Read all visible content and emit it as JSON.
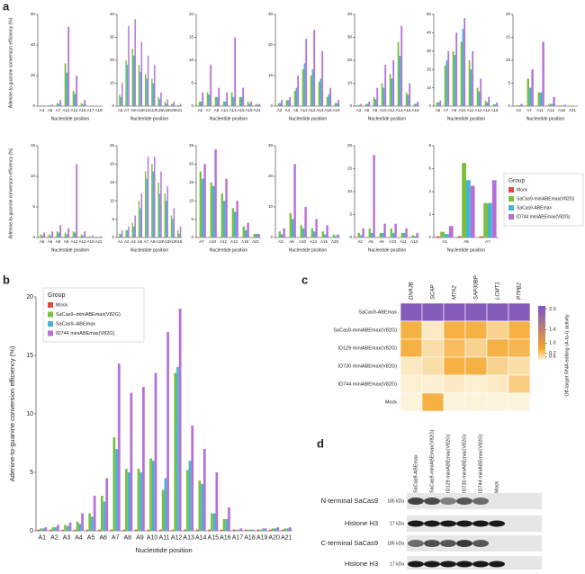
{
  "panels": [
    "a",
    "b",
    "c",
    "d"
  ],
  "chart_data": [
    {
      "type": "bar-grid",
      "ylabel": "Adenine-to-guanine conversion efficiency (%)",
      "xlabel": "Nucleotide position",
      "legend_title": "Group",
      "series": [
        {
          "name": "Mock",
          "color": "#e8463f"
        },
        {
          "name": "SaCas9-miniABEmax(V82G)",
          "color": "#7cbf3f"
        },
        {
          "name": "SaCas9-ABEmax",
          "color": "#45b5d3"
        },
        {
          "name": "ID744 miniABEmax(V82G)",
          "color": "#b66fd6"
        }
      ],
      "subplots": [
        {
          "categories": [
            "A4",
            "A5",
            "A7",
            "A12",
            "A14",
            "A15",
            "A17",
            "A19"
          ],
          "ylim": [
            0,
            60
          ],
          "yticks": [
            0,
            20,
            40,
            60
          ],
          "values": [
            [
              0.1,
              0.1,
              0.1,
              0.1,
              0.1,
              0.1,
              0.1,
              0.1
            ],
            [
              0.5,
              0.5,
              2,
              28,
              10,
              2,
              0.3,
              0.2
            ],
            [
              0.3,
              0.5,
              1.5,
              22,
              8,
              1,
              0.2,
              0.1
            ],
            [
              0.5,
              1,
              4,
              52,
              20,
              4,
              0.5,
              0.3
            ]
          ]
        },
        {
          "categories": [
            "A6",
            "A7",
            "A8",
            "A10",
            "A11",
            "A13",
            "A15",
            "A16",
            "A20",
            "A21"
          ],
          "ylim": [
            0,
            40
          ],
          "yticks": [
            0,
            10,
            20,
            30,
            40
          ],
          "values": [
            [
              0.1,
              0.1,
              0.1,
              0.1,
              0.1,
              0.1,
              0.1,
              0.1,
              0.1,
              0.1
            ],
            [
              5,
              20,
              25,
              18,
              14,
              12,
              4,
              2,
              1,
              0.5
            ],
            [
              4,
              18,
              22,
              15,
              12,
              10,
              3,
              1,
              1,
              0.3
            ],
            [
              10,
              35,
              38,
              28,
              22,
              18,
              6,
              3,
              2,
              1
            ]
          ]
        },
        {
          "categories": [
            "A5",
            "A7",
            "A9",
            "A11",
            "A13",
            "A15",
            "A18",
            "A21"
          ],
          "ylim": [
            0,
            20
          ],
          "yticks": [
            0,
            5,
            10,
            15,
            20
          ],
          "values": [
            [
              0.1,
              0.1,
              0.1,
              0.1,
              0.1,
              0.1,
              0.1,
              0.1
            ],
            [
              1,
              3,
              2,
              1,
              3,
              2,
              1,
              0.5
            ],
            [
              1,
              2.5,
              2,
              1,
              2,
              2,
              0.5,
              0.3
            ],
            [
              3,
              9,
              4,
              3,
              15,
              4,
              1,
              0.5
            ]
          ]
        },
        {
          "categories": [
            "A3",
            "A4",
            "A8",
            "A11",
            "A12",
            "A13",
            "A18",
            "A19"
          ],
          "ylim": [
            0,
            30
          ],
          "yticks": [
            0,
            10,
            20,
            30
          ],
          "values": [
            [
              0.1,
              0.1,
              0.1,
              0.1,
              0.1,
              0.1,
              0.1,
              0.1
            ],
            [
              1,
              2,
              5,
              12,
              10,
              8,
              3,
              1
            ],
            [
              1,
              2,
              6,
              14,
              12,
              9,
              4,
              1
            ],
            [
              2,
              3,
              10,
              22,
              25,
              18,
              6,
              2
            ]
          ]
        },
        {
          "categories": [
            "A3",
            "A5",
            "A8",
            "A10",
            "A12",
            "A13",
            "A15",
            "A16"
          ],
          "ylim": [
            0,
            40
          ],
          "yticks": [
            0,
            10,
            20,
            30,
            40
          ],
          "values": [
            [
              0.1,
              0.1,
              0.1,
              0.1,
              0.1,
              0.1,
              0.1,
              0.1
            ],
            [
              0.5,
              1,
              4,
              10,
              14,
              28,
              6,
              1
            ],
            [
              0.5,
              1,
              3,
              8,
              12,
              22,
              5,
              1
            ],
            [
              1,
              2,
              8,
              18,
              20,
              35,
              10,
              2
            ]
          ]
        },
        {
          "categories": [
            "A5",
            "A7",
            "A9",
            "A10",
            "A11",
            "A12",
            "A14",
            "A16"
          ],
          "ylim": [
            0,
            50
          ],
          "yticks": [
            0,
            10,
            20,
            30,
            40,
            50
          ],
          "values": [
            [
              0.1,
              0.1,
              0.1,
              0.1,
              0.1,
              0.1,
              0.1,
              0.1
            ],
            [
              2,
              22,
              30,
              35,
              25,
              10,
              3,
              1
            ],
            [
              2,
              25,
              28,
              42,
              20,
              8,
              2,
              1
            ],
            [
              3,
              30,
              40,
              48,
              30,
              15,
              5,
              2
            ]
          ]
        },
        {
          "categories": [
            "A3",
            "A7",
            "A11",
            "A12",
            "A16",
            "A21"
          ],
          "ylim": [
            0,
            20
          ],
          "yticks": [
            0,
            5,
            10,
            15,
            20
          ],
          "values": [
            [
              0.1,
              0.1,
              0.1,
              0.1,
              0.1,
              0.1
            ],
            [
              0.2,
              6,
              3,
              0.5,
              0.2,
              0.1
            ],
            [
              0.2,
              4,
              3,
              0.5,
              0.1,
              0.1
            ],
            [
              0.5,
              8,
              14,
              2,
              0.3,
              0.1
            ]
          ]
        },
        {
          "categories": [
            "A5",
            "A6",
            "A8",
            "A9",
            "A12",
            "A13",
            "A19",
            "A21"
          ],
          "ylim": [
            0,
            15
          ],
          "yticks": [
            0,
            5,
            10,
            15
          ],
          "values": [
            [
              0.1,
              0.1,
              0.1,
              0.1,
              0.1,
              0.1,
              0.1,
              0.1
            ],
            [
              0.5,
              0.5,
              1,
              0.8,
              1,
              0.5,
              0.2,
              0.1
            ],
            [
              0.3,
              0.3,
              0.8,
              0.5,
              0.8,
              0.3,
              0.1,
              0.1
            ],
            [
              0.8,
              1,
              2,
              1.5,
              12,
              1,
              0.3,
              0.2
            ]
          ]
        },
        {
          "categories": [
            "A1",
            "A2",
            "A4",
            "A5",
            "A7",
            "A9",
            "A10",
            "A12",
            "A13",
            "A15"
          ],
          "ylim": [
            0,
            25
          ],
          "yticks": [
            0,
            5,
            10,
            15,
            20,
            25
          ],
          "values": [
            [
              0.1,
              0.1,
              0.1,
              0.1,
              0.1,
              0.1,
              0.1,
              0.1,
              0.1,
              0.1
            ],
            [
              1,
              2,
              4,
              10,
              18,
              20,
              15,
              12,
              6,
              2
            ],
            [
              1,
              2,
              3,
              8,
              16,
              18,
              12,
              10,
              5,
              1
            ],
            [
              2,
              3,
              6,
              12,
              22,
              22,
              18,
              14,
              8,
              3
            ]
          ]
        },
        {
          "categories": [
            "A7",
            "A10",
            "A12",
            "A13",
            "A18",
            "A21"
          ],
          "ylim": [
            0,
            25
          ],
          "yticks": [
            0,
            5,
            10,
            15,
            20,
            25
          ],
          "values": [
            [
              0.1,
              0.1,
              0.1,
              0.1,
              0.1,
              0.1
            ],
            [
              18,
              15,
              12,
              8,
              3,
              1
            ],
            [
              16,
              14,
              10,
              7,
              2,
              1
            ],
            [
              20,
              24,
              16,
              10,
              4,
              1
            ]
          ]
        },
        {
          "categories": [
            "A3",
            "A6",
            "A10",
            "A13",
            "A15",
            "A20"
          ],
          "ylim": [
            0,
            30
          ],
          "yticks": [
            0,
            10,
            20,
            30
          ],
          "values": [
            [
              0.1,
              0.1,
              0.1,
              0.1,
              0.1,
              0.1
            ],
            [
              2,
              8,
              4,
              3,
              2,
              1
            ],
            [
              1,
              6,
              3,
              2,
              1,
              0.5
            ],
            [
              3,
              24,
              10,
              6,
              4,
              1
            ]
          ]
        },
        {
          "categories": [
            "A2",
            "A5",
            "A6",
            "A10",
            "A11",
            "A13"
          ],
          "ylim": [
            0,
            20
          ],
          "yticks": [
            0,
            5,
            10,
            15,
            20
          ],
          "values": [
            [
              0.1,
              0.1,
              0.1,
              0.1,
              0.1,
              0.1
            ],
            [
              1,
              2,
              1,
              2,
              1,
              0.5
            ],
            [
              0.5,
              1,
              1,
              1,
              1,
              0.3
            ],
            [
              2,
              18,
              3,
              3,
              2,
              1
            ]
          ]
        },
        {
          "categories": [
            "A1",
            "A5",
            "A7"
          ],
          "ylim": [
            0,
            8
          ],
          "yticks": [
            0,
            2,
            4,
            6,
            8
          ],
          "values": [
            [
              0.1,
              0.1,
              0.1
            ],
            [
              0.5,
              6.5,
              3
            ],
            [
              0.3,
              5,
              3
            ],
            [
              1,
              4.5,
              5
            ]
          ]
        }
      ]
    },
    {
      "type": "bar",
      "ylabel": "Adenine-to-guanine conversion efficiency (%)",
      "xlabel": "Nucleotide position",
      "legend_title": "Group",
      "categories": [
        "A1",
        "A2",
        "A3",
        "A4",
        "A5",
        "A6",
        "A7",
        "A8",
        "A9",
        "A10",
        "A11",
        "A12",
        "A13",
        "A14",
        "A15",
        "A16",
        "A17",
        "A18",
        "A19",
        "A20",
        "A21"
      ],
      "ylim": [
        0,
        20
      ],
      "yticks": [
        0,
        5,
        10,
        15,
        20
      ],
      "series": [
        {
          "name": "Mock",
          "color": "#e8463f",
          "values": [
            0.1,
            0.1,
            0.1,
            0.1,
            0.1,
            0.1,
            0.1,
            0.1,
            0.1,
            0.1,
            0.1,
            0.1,
            0.1,
            0.1,
            0.1,
            0.1,
            0.1,
            0.1,
            0.1,
            0.1,
            0.1
          ]
        },
        {
          "name": "SaCas9–miniABEmax(V82G)",
          "color": "#7cbf3f",
          "values": [
            0.2,
            0.3,
            0.5,
            0.8,
            1.5,
            3,
            8,
            5.3,
            5.3,
            6.2,
            3.5,
            13.5,
            5.2,
            4.3,
            1.5,
            1,
            0.1,
            0.1,
            0.1,
            0.2,
            0.2
          ]
        },
        {
          "name": "SaCas9–ABEmax",
          "color": "#45b5d3",
          "values": [
            0.2,
            0.3,
            0.4,
            0.6,
            1.2,
            2.5,
            7,
            5,
            5,
            6,
            4.5,
            14,
            6,
            4,
            1.5,
            1,
            0.1,
            0.1,
            0.2,
            0.2,
            0.2
          ]
        },
        {
          "name": "ID744 miniABEmax(V82G)",
          "color": "#b66fd6",
          "values": [
            0.3,
            0.5,
            0.7,
            1.5,
            3,
            4.5,
            14.3,
            11.8,
            12.3,
            13.5,
            17,
            19,
            9,
            7,
            5,
            2,
            0.2,
            0.1,
            0.2,
            0.3,
            0.3
          ]
        }
      ]
    },
    {
      "type": "heatmap",
      "columns": [
        "DNAJB",
        "SCAP",
        "MTA2",
        "SAP30BP",
        "LCMT1",
        "PTPB2"
      ],
      "rows": [
        "SaCas9-ABEmax",
        "SaCas9-miniABEmax(V82G)",
        "ID129 miniABEmax(V82G)",
        "ID730 miniABEmax(V82G)",
        "ID744 miniABEmax(V82G)",
        "Mock"
      ],
      "values": [
        [
          2,
          2,
          2,
          2,
          2,
          2
        ],
        [
          0.8,
          0.55,
          0.8,
          0.8,
          0.65,
          0.8
        ],
        [
          0.8,
          0.6,
          0.75,
          0.65,
          0.8,
          0.78
        ],
        [
          0.55,
          0.6,
          0.8,
          0.8,
          0.65,
          0.6
        ],
        [
          0.52,
          0.52,
          0.55,
          0.52,
          0.55,
          0.68
        ],
        [
          0.5,
          0.8,
          0.5,
          0.5,
          0.5,
          0.5
        ]
      ],
      "zlim": [
        0.5,
        2.1
      ],
      "colors": [
        "#fdf4dc",
        "#f4a52a",
        "#7b55c8"
      ],
      "colorbar_label": "Off-target RNA-editing (A-to-I) activity",
      "colorbar_ticks": [
        {
          "value": 2,
          "label": "2.0"
        },
        1.4,
        {
          "value": 1,
          "label": "1.0"
        },
        0.7,
        0.6
      ]
    }
  ],
  "blot": {
    "lanes": [
      "SaCas9-ABEmax",
      "SaCas9-miniABEmax(V82G)",
      "ID129 miniABEmax(V82G)",
      "ID730 miniABEmax(V82G)",
      "ID744 miniABEmax(V82G)",
      "Mock"
    ],
    "rows": [
      {
        "label": "N-terminal SaCas9",
        "kda": "185 kDa"
      },
      {
        "label": "Histone H3",
        "kda": "17 kDa"
      },
      {
        "label": "C-terminal SaCas9",
        "kda": "185 kDa"
      },
      {
        "label": "Histone H3",
        "kda": "17 kDa"
      }
    ]
  }
}
